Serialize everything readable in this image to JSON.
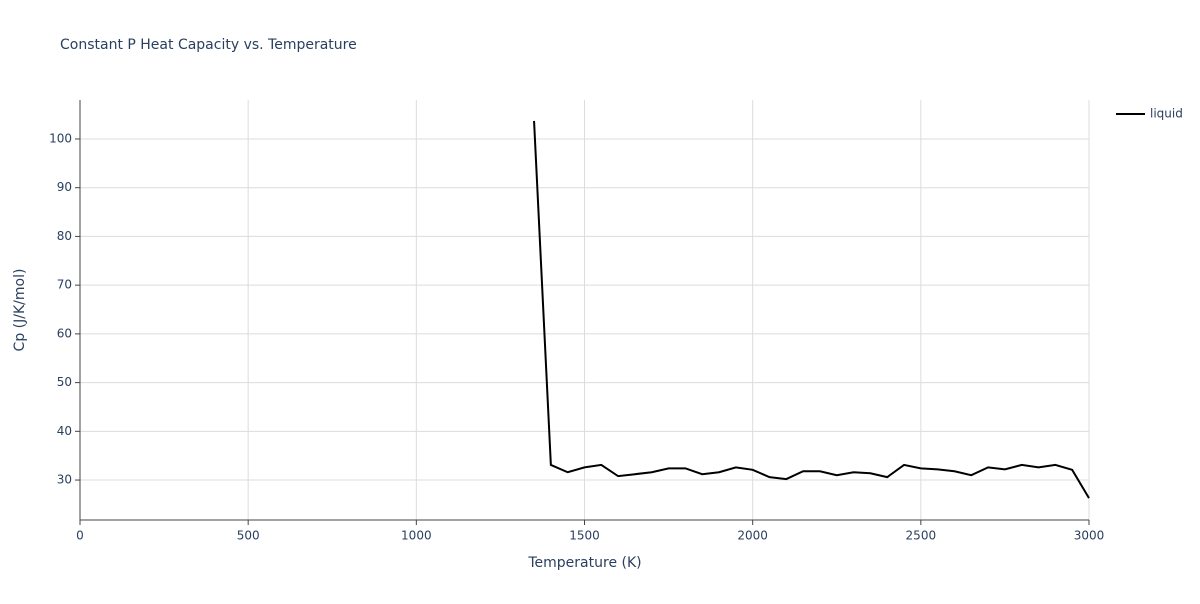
{
  "chart_data": {
    "type": "line",
    "title": "Constant P Heat Capacity vs. Temperature",
    "x_label": "Temperature (K)",
    "y_label": "Cp (J/K/mol)",
    "x": [
      1350,
      1400,
      1450,
      1500,
      1550,
      1600,
      1650,
      1700,
      1750,
      1800,
      1850,
      1900,
      1950,
      2000,
      2050,
      2100,
      2150,
      2200,
      2250,
      2300,
      2350,
      2400,
      2450,
      2500,
      2550,
      2600,
      2650,
      2700,
      2750,
      2800,
      2850,
      2900,
      2950,
      3000
    ],
    "series": [
      {
        "name": "liquid",
        "color": "#000000",
        "values": [
          103.7,
          33.1,
          31.6,
          32.6,
          33.1,
          30.8,
          31.2,
          31.6,
          32.4,
          32.4,
          31.2,
          31.6,
          32.6,
          32.1,
          30.6,
          30.2,
          31.8,
          31.8,
          31.0,
          31.6,
          31.4,
          30.6,
          33.1,
          32.4,
          32.2,
          31.8,
          31.0,
          32.6,
          32.2,
          33.1,
          32.6,
          33.1,
          32.1,
          26.3
        ]
      }
    ],
    "xlim": [
      0,
      3000
    ],
    "xticks": [
      0,
      500,
      1000,
      1500,
      2000,
      2500,
      3000
    ],
    "ylim": [
      21.8,
      108
    ],
    "yticks": [
      30,
      40,
      50,
      60,
      70,
      80,
      90,
      100
    ],
    "grid": true,
    "legend": "top-right"
  }
}
